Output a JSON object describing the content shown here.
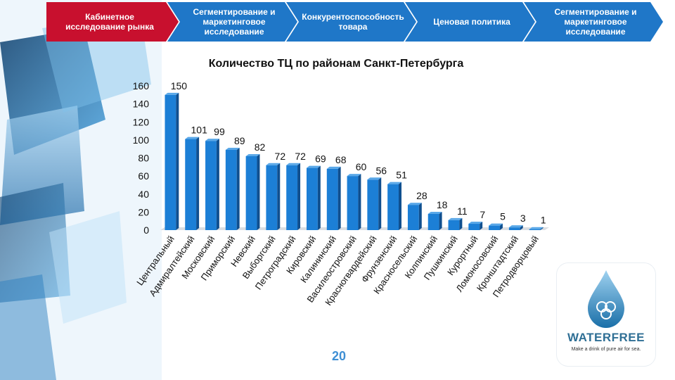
{
  "nav": {
    "tabs": [
      {
        "label": "Кабинетное исследование рынка",
        "active": true
      },
      {
        "label": "Сегментирование и маркетинговое исследование",
        "active": false
      },
      {
        "label": "Конкурентоспособность товара",
        "active": false
      },
      {
        "label": "Ценовая политика",
        "active": false
      },
      {
        "label": "Сегментирование и маркетинговое исследование",
        "active": false
      }
    ]
  },
  "colors": {
    "accent_red": "#c8102e",
    "nav_blue": "#1f77c8",
    "bar_blue": "#1c7fd6",
    "bar_dark": "#0f4f8f"
  },
  "chart_data": {
    "type": "bar",
    "title": "Количество ТЦ по районам Санкт-Петербурга",
    "categories": [
      "Центральный",
      "Адмиралтейский",
      "Московский",
      "Приморский",
      "Невский",
      "Выборгский",
      "Петроградский",
      "Кировский",
      "Калининский",
      "Василеостровский",
      "Красногвардейский",
      "Фрунзенский",
      "Красносельский",
      "Колпинский",
      "Пушкинский",
      "Курортный",
      "Ломоносовский",
      "Кронштадтский",
      "Петродворцовый"
    ],
    "values": [
      150,
      101,
      99,
      89,
      82,
      72,
      72,
      69,
      68,
      60,
      56,
      51,
      28,
      18,
      11,
      7,
      5,
      3,
      1
    ],
    "ylim": [
      0,
      160
    ],
    "yticks": [
      0,
      20,
      40,
      60,
      80,
      100,
      120,
      140,
      160
    ],
    "grid": false,
    "legend": "none"
  },
  "page": {
    "number": "20"
  },
  "logo": {
    "name": "WATERFREE",
    "tagline": "Make a drink of pure air for sea."
  }
}
